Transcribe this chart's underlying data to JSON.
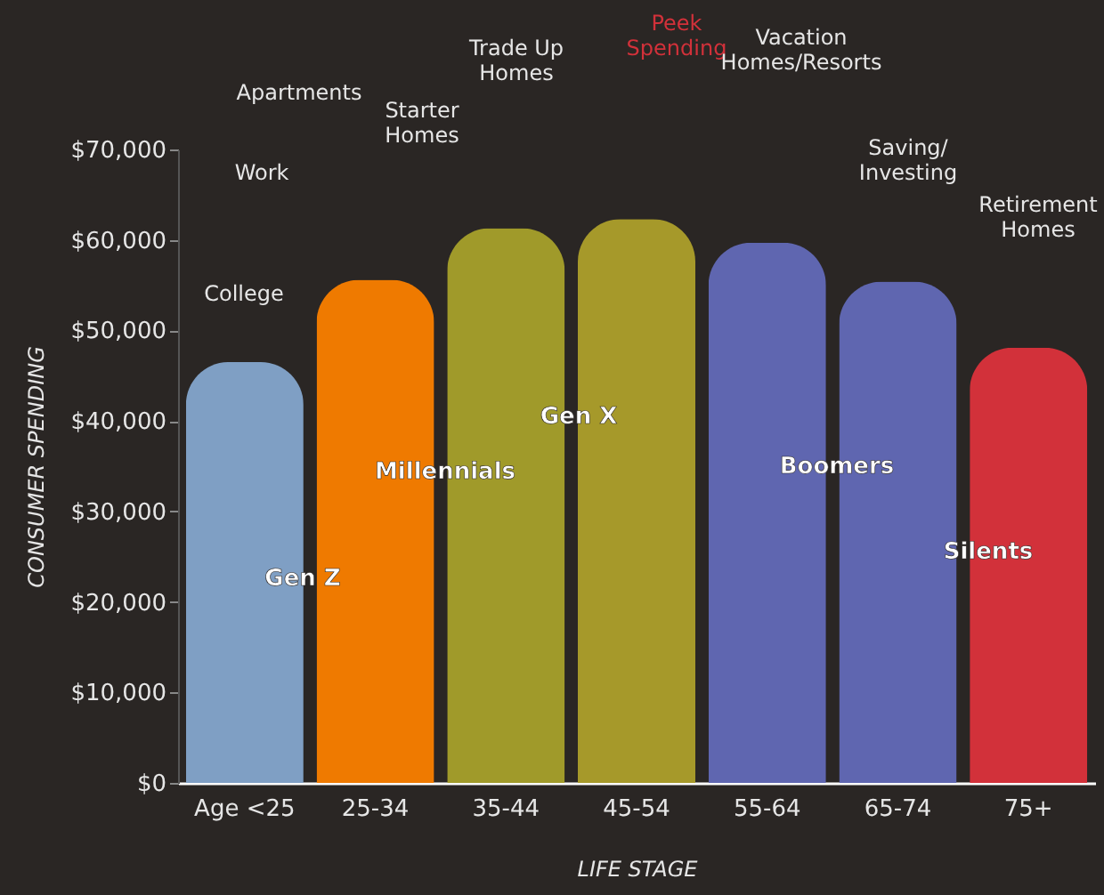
{
  "chart_data": {
    "type": "bar",
    "xlabel": "LIFE STAGE",
    "ylabel": "CONSUMER SPENDING",
    "categories": [
      "Age <25",
      "25-34",
      "35-44",
      "45-54",
      "55-64",
      "65-74",
      "75+"
    ],
    "values": [
      46500,
      55600,
      61300,
      62300,
      59700,
      55400,
      48100
    ],
    "colors": [
      "#7f9fc4",
      "#ef7a00",
      "#a09a2a",
      "#a6992a",
      "#5f66b0",
      "#5f66b0",
      "#d2313a"
    ],
    "ylim": [
      0,
      70000
    ],
    "yticks": [
      {
        "value": 0,
        "label": "$0"
      },
      {
        "value": 10000,
        "label": "$10,000"
      },
      {
        "value": 20000,
        "label": "$20,000"
      },
      {
        "value": 30000,
        "label": "$30,000"
      },
      {
        "value": 40000,
        "label": "$40,000"
      },
      {
        "value": 50000,
        "label": "$50,000"
      },
      {
        "value": 60000,
        "label": "$60,000"
      },
      {
        "value": 70000,
        "label": "$70,000"
      }
    ],
    "grid": false,
    "annotations": [
      "College",
      "Work",
      "Apartments",
      "Starter\nHomes",
      "Trade Up\nHomes",
      "Peek\nSpending",
      "Vacation\nHomes/Resorts",
      "Saving/\nInvesting",
      "Retirement\nHomes",
      "Gen Z",
      "Millennials",
      "Gen X",
      "Boomers",
      "Silents"
    ]
  }
}
